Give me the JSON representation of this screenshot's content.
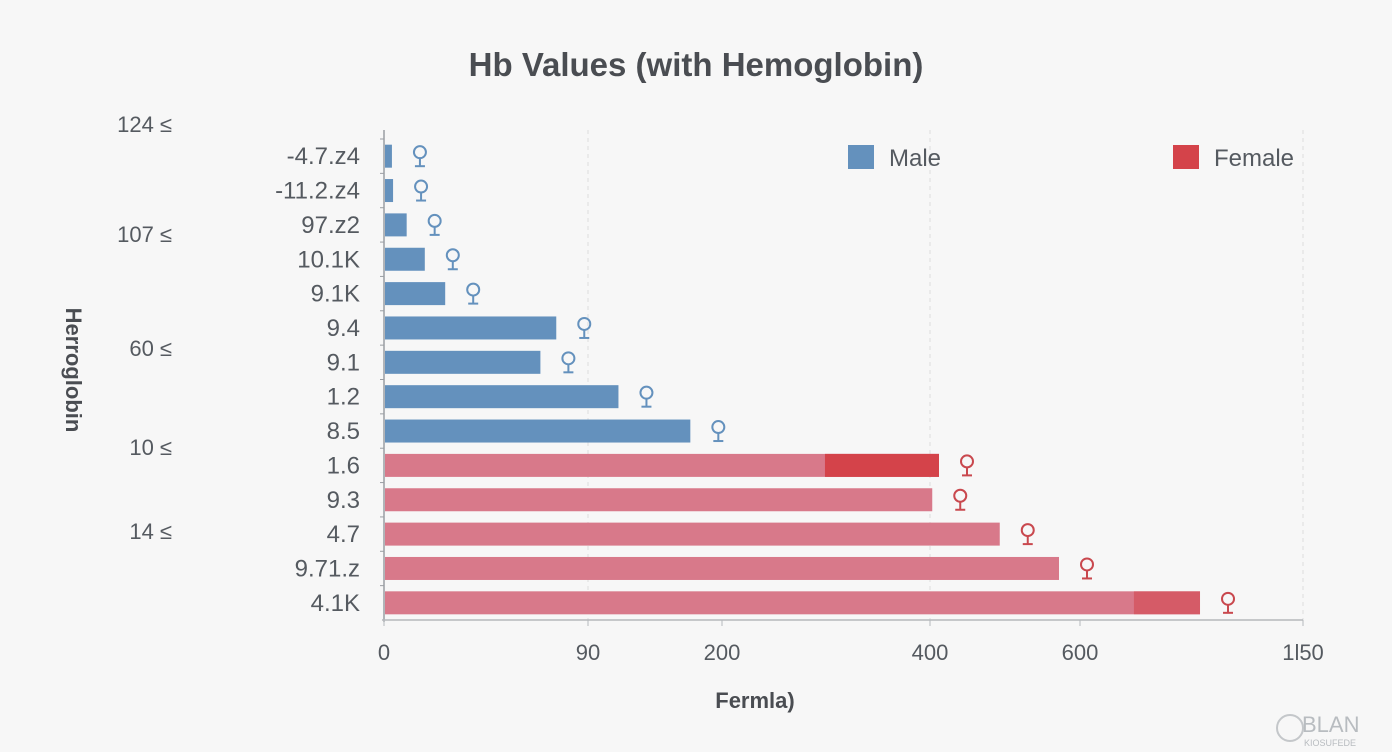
{
  "chart_data": {
    "type": "bar",
    "orientation": "horizontal",
    "title": "Hb Values (with Hemoglobin)",
    "xlabel": "Fermla)",
    "ylabel": "Herroglobin",
    "x_ticks": [
      0,
      90,
      200,
      400,
      600,
      1150
    ],
    "x_tick_labels": [
      "0",
      "90",
      "200",
      "400",
      "600",
      "1l50"
    ],
    "xlim": [
      0,
      1150
    ],
    "grid": "vertical dashed",
    "legend_position": "top-right",
    "outer_y_labels": [
      "124 ≤",
      "107 ≤",
      "60 ≤",
      "10 ≤",
      "14 ≤"
    ],
    "categories": [
      "-4.7.z4",
      "-11.2.z4",
      "97.z2",
      "10.1K",
      "9.1K",
      "9.4",
      "9.1",
      "1.2",
      "8.5",
      "1.6",
      "9.3",
      "4.7",
      "9.71.z",
      "4.1K"
    ],
    "series": [
      {
        "name": "Male",
        "color": "#6491bd",
        "values": [
          3.5,
          4,
          10,
          18,
          27,
          76,
          69,
          115,
          174,
          null,
          null,
          null,
          null,
          null
        ]
      },
      {
        "name": "Female",
        "color": "#d8798a",
        "highlight_color": "#d4434a",
        "values": [
          null,
          null,
          null,
          null,
          null,
          null,
          null,
          null,
          null,
          412,
          403,
          493,
          572,
          896
        ],
        "highlight_from": [
          null,
          null,
          null,
          null,
          null,
          null,
          null,
          null,
          null,
          299,
          null,
          null,
          null,
          733
        ]
      }
    ],
    "marker": "female-symbol"
  },
  "watermark": {
    "line1": "BLAN",
    "line2": "KIOSUFEDE"
  }
}
